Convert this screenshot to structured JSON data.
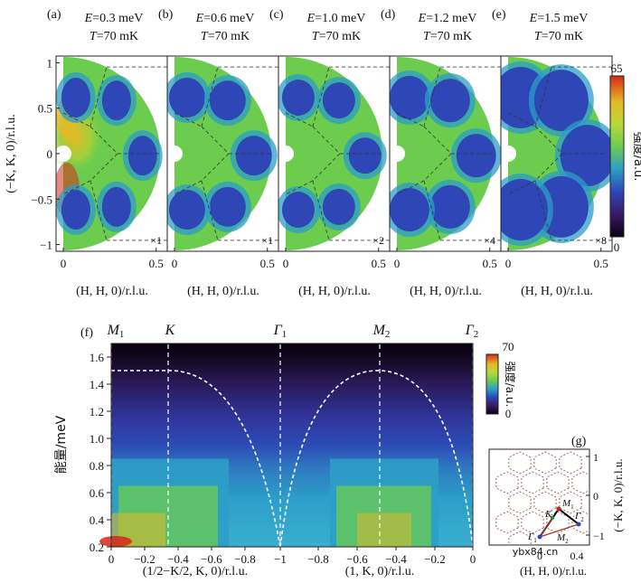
{
  "colors": {
    "high": "#d62818",
    "mid_high": "#e6b825",
    "mid": "#6ccc4e",
    "mid_low": "#2c9ec8",
    "low": "#2e46b6",
    "background": "#0a0010",
    "point_m": "#c0281e",
    "point_k": "#2a8a3a",
    "point_gamma": "#2e46b6",
    "guide_line": "#8a4a40"
  },
  "top_panels": [
    {
      "tag": "(a)",
      "energy": "E=0.3 meV",
      "temp": "T=70 mK",
      "scale": "×1"
    },
    {
      "tag": "(b)",
      "energy": "E=0.6 meV",
      "temp": "T=70 mK",
      "scale": "×1"
    },
    {
      "tag": "(c)",
      "energy": "E=1.0 meV",
      "temp": "T=70 mK",
      "scale": "×2"
    },
    {
      "tag": "(d)",
      "energy": "E=1.2 meV",
      "temp": "T=70 mK",
      "scale": "×4"
    },
    {
      "tag": "(e)",
      "energy": "E=1.5 meV",
      "temp": "T=70 mK",
      "scale": "×8"
    }
  ],
  "top_axes": {
    "x_label": "(H, H, 0)/r.l.u.",
    "x_ticks": [
      "0",
      "0.5"
    ],
    "y_label": "(−K, K, 0)/r.l.u.",
    "y_ticks": [
      "1",
      "0.5",
      "0",
      "−0.5",
      "−1"
    ]
  },
  "top_colorbar": {
    "max": "65",
    "min": "0",
    "label": "强度/a.u."
  },
  "panel_f": {
    "tag": "(f)",
    "y_label": "能量/meV",
    "y_ticks": [
      "1.6",
      "1.4",
      "1.2",
      "1.0",
      "0.8",
      "0.6",
      "0.4",
      "0.2"
    ],
    "left_x_label": "(1/2−K/2, K, 0)/r.l.u.",
    "left_x_ticks": [
      "0",
      "−0.2",
      "−0.4",
      "−0.6",
      "−0.8",
      "−1"
    ],
    "right_x_label": "(1, K, 0)/r.l.u.",
    "right_x_ticks": [
      "−0.8",
      "−0.6",
      "−0.4",
      "−0.2",
      "0"
    ],
    "points": [
      {
        "name": "M",
        "sub": "1",
        "color": "point_m"
      },
      {
        "name": "K",
        "sub": "",
        "color": "guide"
      },
      {
        "name": "Γ",
        "sub": "1",
        "color": "point_m"
      },
      {
        "name": "M",
        "sub": "2",
        "color": "point_m"
      },
      {
        "name": "Γ",
        "sub": "2",
        "color": "point_m"
      }
    ],
    "colorbar": {
      "max": "70",
      "min": "0",
      "label": "强度/a.u."
    }
  },
  "panel_g": {
    "tag": "(g)",
    "x_label": "(H, H, 0)/r.l.u.",
    "x_ticks": [
      "0",
      "0.4"
    ],
    "y_label": "(−K, K, 0)/r.l.u.",
    "y_ticks": [
      "1",
      "0",
      "−1"
    ],
    "labels": [
      {
        "name": "K",
        "sub": "",
        "color": "point_k"
      },
      {
        "name": "M",
        "sub": "1",
        "color": "point_m"
      },
      {
        "name": "Γ",
        "sub": "2",
        "color": "point_gamma"
      },
      {
        "name": "Γ",
        "sub": "1",
        "color": "point_gamma"
      },
      {
        "name": "M",
        "sub": "2",
        "color": "point_m"
      }
    ]
  },
  "watermark": "ybx84.cn"
}
